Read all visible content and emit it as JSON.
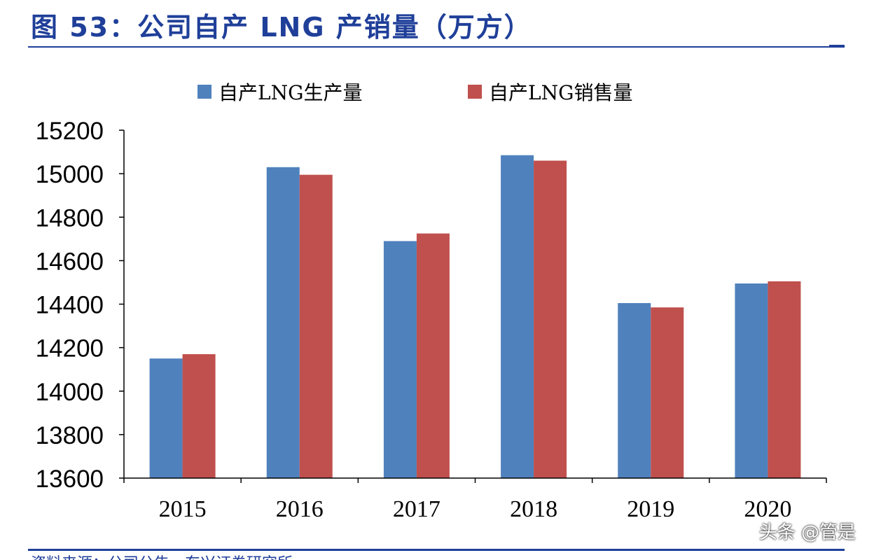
{
  "figure": {
    "title": "图 53：公司自产 LNG 产销量（万方）",
    "footer_source": "资料来源：公司公告，东兴证券研究所",
    "watermark": "头条 @管是"
  },
  "chart_data": {
    "type": "bar",
    "categories": [
      "2015",
      "2016",
      "2017",
      "2018",
      "2019",
      "2020"
    ],
    "series": [
      {
        "name": "自产LNG生产量",
        "color": "#4f81bd",
        "values": [
          14150,
          15030,
          14690,
          15085,
          14405,
          14495
        ]
      },
      {
        "name": "自产LNG销售量",
        "color": "#c0504d",
        "values": [
          14170,
          14995,
          14725,
          15060,
          14385,
          14505
        ]
      }
    ],
    "ylim": [
      13600,
      15200
    ],
    "yticks": [
      13600,
      13800,
      14000,
      14200,
      14400,
      14600,
      14800,
      15000,
      15200
    ],
    "legend_position": "top-center",
    "grid": false
  }
}
